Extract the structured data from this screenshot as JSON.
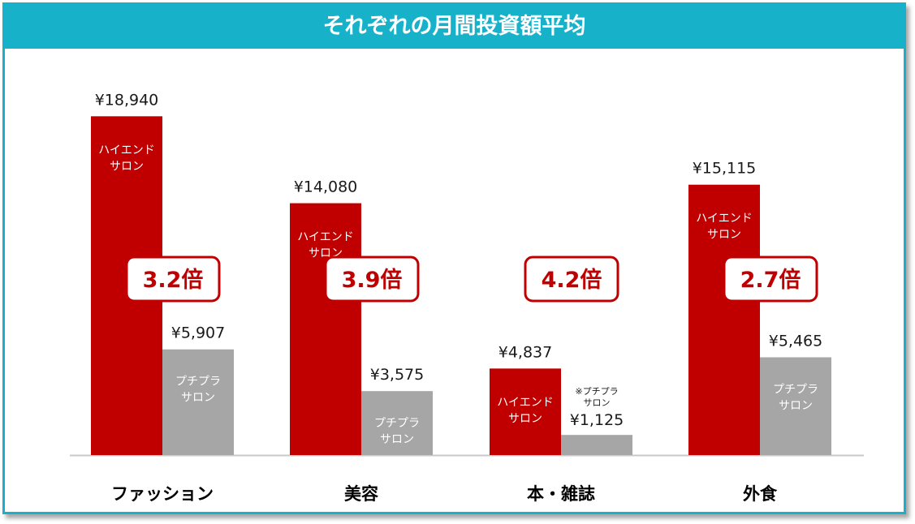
{
  "title": "それぞれの月間投資額平均",
  "colors": {
    "accent": "#17b1c9",
    "high": "#c00000",
    "petit": "#a6a6a6"
  },
  "chart_data": {
    "type": "bar",
    "title": "それぞれの月間投資額平均",
    "categories": [
      "ファッション",
      "美容",
      "本・雑誌",
      "外食"
    ],
    "series": [
      {
        "name": "ハイエンドサロン",
        "label_lines": [
          "ハイエンド",
          "サロン"
        ],
        "values": [
          18940,
          14080,
          4837,
          15115
        ],
        "value_labels": [
          "¥18,940",
          "¥14,080",
          "¥4,837",
          "¥15,115"
        ]
      },
      {
        "name": "プチプラサロン",
        "label_lines": [
          "プチプラ",
          "サロン"
        ],
        "values": [
          5907,
          3575,
          1125,
          5465
        ],
        "value_labels": [
          "¥5,907",
          "¥3,575",
          "¥1,125",
          "¥5,465"
        ]
      }
    ],
    "ratios": [
      "3.2倍",
      "3.9倍",
      "4.2倍",
      "2.7倍"
    ],
    "note_prefix": "※",
    "ylim": [
      0,
      19500
    ],
    "grid": false
  }
}
